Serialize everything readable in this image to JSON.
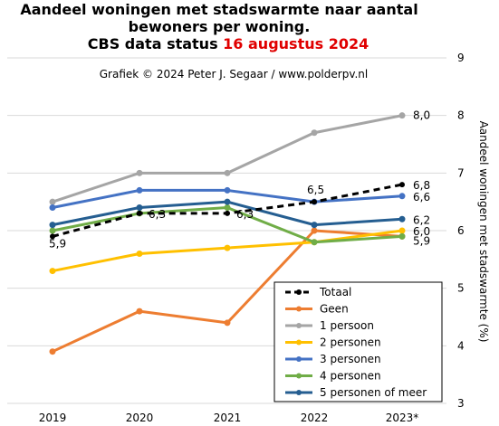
{
  "chart_data": {
    "type": "line",
    "title_line1": "Aandeel woningen met stadswarmte naar aantal",
    "title_line2": "bewoners per woning.",
    "title_line3_prefix": "CBS data status ",
    "title_line3_date": "16 augustus 2024",
    "credit": "Grafiek  © 2024  Peter J. Segaar / www.polderpv.nl",
    "ylabel": "Aandeel woningen met stadswarmte (%)",
    "ylim": [
      3,
      9
    ],
    "yticks": [
      "3",
      "4",
      "5",
      "6",
      "7",
      "8",
      "9"
    ],
    "categories": [
      "2019",
      "2020",
      "2021",
      "2022",
      "2023*"
    ],
    "legend_position": "bottom-right",
    "grid": true,
    "series": [
      {
        "name": "Totaal",
        "values": [
          5.9,
          6.3,
          6.3,
          6.5,
          6.8
        ],
        "color": "#000000",
        "dashed": true
      },
      {
        "name": "Geen",
        "values": [
          3.9,
          4.6,
          4.4,
          6.0,
          5.9
        ],
        "color": "#ed7d31",
        "dashed": false
      },
      {
        "name": "1 persoon",
        "values": [
          6.5,
          7.0,
          7.0,
          7.7,
          8.0
        ],
        "color": "#a5a5a5",
        "dashed": false
      },
      {
        "name": "2 personen",
        "values": [
          5.3,
          5.6,
          5.7,
          5.8,
          6.0
        ],
        "color": "#ffc000",
        "dashed": false
      },
      {
        "name": "3 personen",
        "values": [
          6.4,
          6.7,
          6.7,
          6.5,
          6.6
        ],
        "color": "#4472c4",
        "dashed": false
      },
      {
        "name": "4 personen",
        "values": [
          6.0,
          6.3,
          6.4,
          5.8,
          5.9
        ],
        "color": "#70ad47",
        "dashed": false
      },
      {
        "name": "5 personen of meer",
        "values": [
          6.1,
          6.4,
          6.5,
          6.1,
          6.2
        ],
        "color": "#255e91",
        "dashed": false
      }
    ],
    "data_labels": [
      {
        "text": "5,9",
        "series": "Totaal",
        "index": 0
      },
      {
        "text": "6,3",
        "series": "Totaal",
        "index": 1
      },
      {
        "text": "6,3",
        "series": "Totaal",
        "index": 2
      },
      {
        "text": "6,5",
        "series": "Totaal",
        "index": 3
      },
      {
        "text": "8,0",
        "series": "1 persoon",
        "index": 4
      },
      {
        "text": "6,8",
        "series": "Totaal",
        "index": 4
      },
      {
        "text": "6,6",
        "series": "3 personen",
        "index": 4
      },
      {
        "text": "6,2",
        "series": "5 personen of meer",
        "index": 4
      },
      {
        "text": "6,0",
        "series": "2 personen",
        "index": 4
      },
      {
        "text": "5,9",
        "series": "4 personen",
        "index": 4
      }
    ]
  }
}
